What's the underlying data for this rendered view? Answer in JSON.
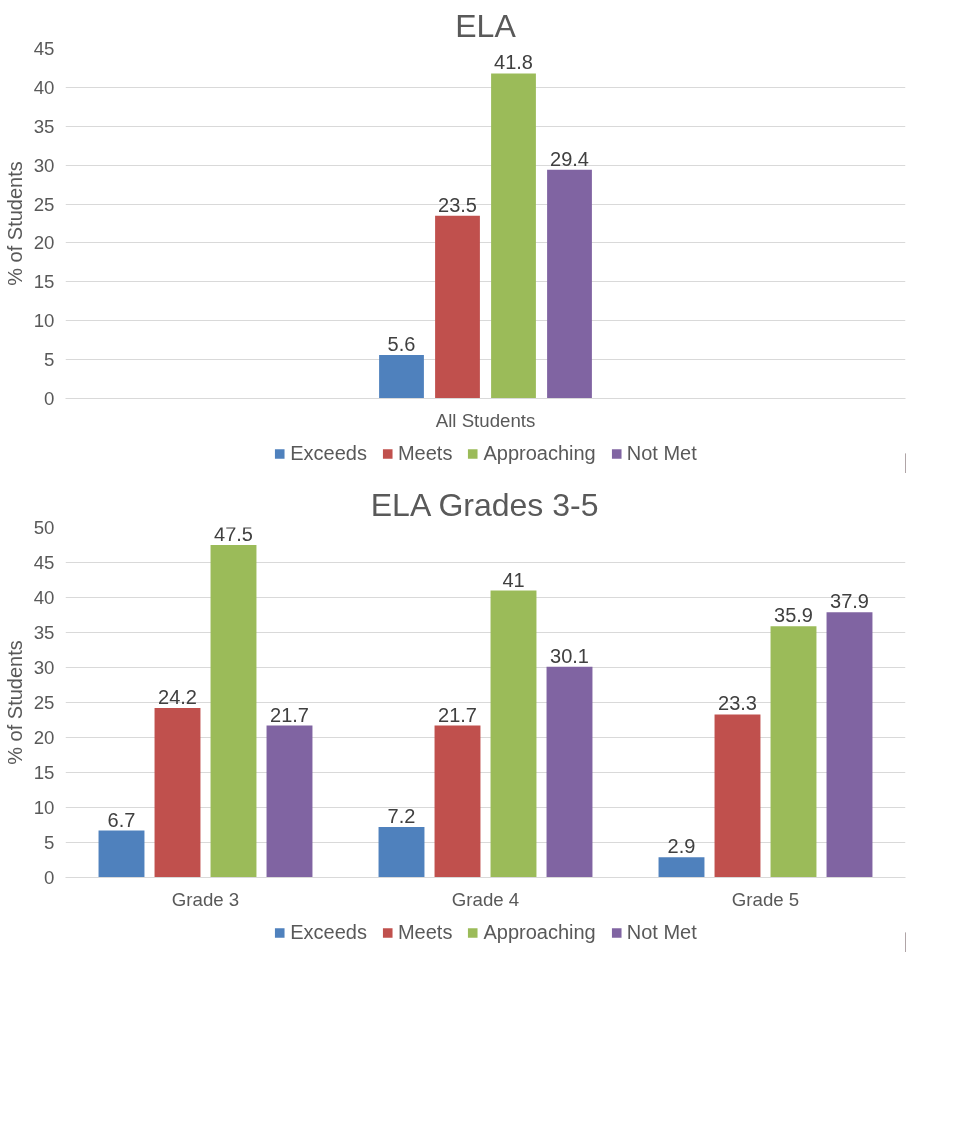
{
  "chart_data": [
    {
      "type": "bar",
      "title": "ELA",
      "ylabel": "% of Students",
      "categories": [
        "All Students"
      ],
      "series": [
        {
          "name": "Exceeds",
          "color": "#4f81bd",
          "values": [
            5.6
          ]
        },
        {
          "name": "Meets",
          "color": "#c0504d",
          "values": [
            23.5
          ]
        },
        {
          "name": "Approaching",
          "color": "#9bbb59",
          "values": [
            41.8
          ]
        },
        {
          "name": "Not Met",
          "color": "#8064a2",
          "values": [
            29.4
          ]
        }
      ],
      "ylim": [
        0,
        45
      ],
      "yticks": [
        0,
        5,
        10,
        15,
        20,
        25,
        30,
        35,
        40,
        45
      ],
      "grid": "y",
      "legend": "bottom",
      "data_labels": true
    },
    {
      "type": "bar",
      "title": "ELA Grades 3-5",
      "ylabel": "% of Students",
      "categories": [
        "Grade 3",
        "Grade 4",
        "Grade 5"
      ],
      "series": [
        {
          "name": "Exceeds",
          "color": "#4f81bd",
          "values": [
            6.7,
            7.2,
            2.9
          ]
        },
        {
          "name": "Meets",
          "color": "#c0504d",
          "values": [
            24.2,
            21.7,
            23.3
          ]
        },
        {
          "name": "Approaching",
          "color": "#9bbb59",
          "values": [
            47.5,
            41,
            35.9
          ]
        },
        {
          "name": "Not Met",
          "color": "#8064a2",
          "values": [
            21.7,
            30.1,
            37.9
          ]
        }
      ],
      "ylim": [
        0,
        50
      ],
      "yticks": [
        0,
        5,
        10,
        15,
        20,
        25,
        30,
        35,
        40,
        45,
        50
      ],
      "grid": "y",
      "legend": "bottom",
      "data_labels": true
    }
  ]
}
